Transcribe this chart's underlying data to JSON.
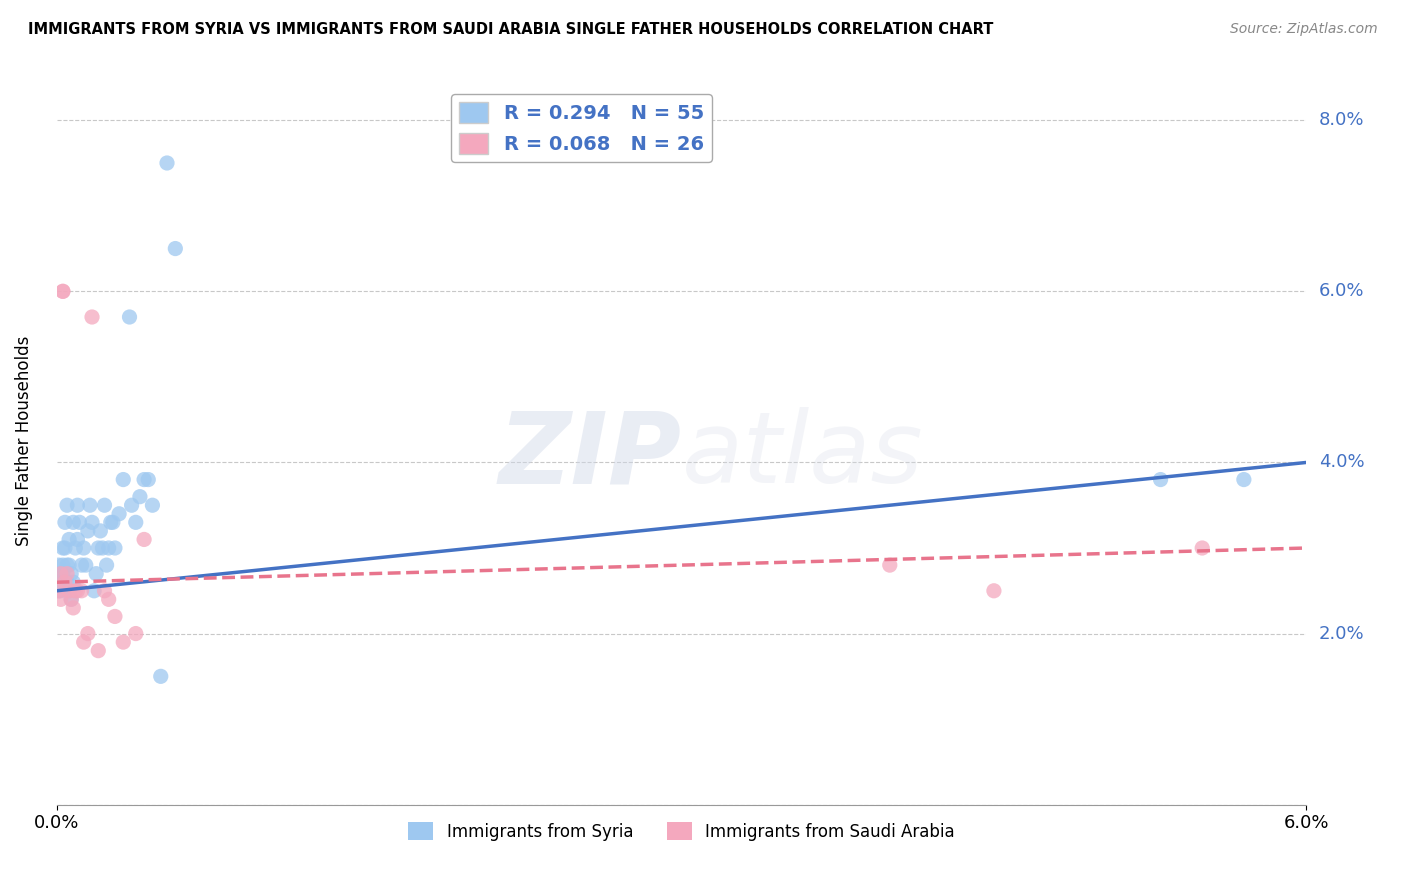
{
  "title": "IMMIGRANTS FROM SYRIA VS IMMIGRANTS FROM SAUDI ARABIA SINGLE FATHER HOUSEHOLDS CORRELATION CHART",
  "source": "Source: ZipAtlas.com",
  "ylabel": "Single Father Households",
  "series": [
    {
      "name": "Immigrants from Syria",
      "color": "#9ec8f0",
      "R": 0.294,
      "N": 55,
      "x": [
        0.0,
        0.0001,
        0.0001,
        0.0002,
        0.0002,
        0.0003,
        0.0003,
        0.0003,
        0.0004,
        0.0004,
        0.0005,
        0.0005,
        0.0005,
        0.0006,
        0.0006,
        0.0006,
        0.0007,
        0.0007,
        0.0008,
        0.0008,
        0.0009,
        0.001,
        0.001,
        0.0011,
        0.0012,
        0.0013,
        0.0014,
        0.0015,
        0.0016,
        0.0017,
        0.0018,
        0.0019,
        0.002,
        0.0021,
        0.0022,
        0.0023,
        0.0024,
        0.0025,
        0.0026,
        0.0027,
        0.0028,
        0.003,
        0.0032,
        0.0035,
        0.0036,
        0.0038,
        0.004,
        0.0042,
        0.0044,
        0.0046,
        0.005,
        0.0053,
        0.0057,
        0.053,
        0.057
      ],
      "y": [
        0.026,
        0.025,
        0.028,
        0.027,
        0.025,
        0.027,
        0.03,
        0.028,
        0.03,
        0.033,
        0.026,
        0.028,
        0.035,
        0.025,
        0.028,
        0.031,
        0.024,
        0.027,
        0.033,
        0.026,
        0.03,
        0.031,
        0.035,
        0.033,
        0.028,
        0.03,
        0.028,
        0.032,
        0.035,
        0.033,
        0.025,
        0.027,
        0.03,
        0.032,
        0.03,
        0.035,
        0.028,
        0.03,
        0.033,
        0.033,
        0.03,
        0.034,
        0.038,
        0.057,
        0.035,
        0.033,
        0.036,
        0.038,
        0.038,
        0.035,
        0.015,
        0.075,
        0.065,
        0.038,
        0.038
      ],
      "trend_x0": 0.0,
      "trend_x1": 0.06,
      "trend_y0": 0.025,
      "trend_y1": 0.04,
      "line_color": "#4472c4",
      "line_style": "solid"
    },
    {
      "name": "Immigrants from Saudi Arabia",
      "color": "#f4a8be",
      "R": 0.068,
      "N": 26,
      "x": [
        0.0001,
        0.0002,
        0.0002,
        0.0003,
        0.0003,
        0.0004,
        0.0005,
        0.0006,
        0.0007,
        0.0008,
        0.0009,
        0.001,
        0.0012,
        0.0013,
        0.0015,
        0.0017,
        0.002,
        0.0023,
        0.0025,
        0.0028,
        0.0032,
        0.0038,
        0.0042,
        0.04,
        0.045,
        0.055
      ],
      "y": [
        0.025,
        0.027,
        0.024,
        0.06,
        0.06,
        0.026,
        0.027,
        0.025,
        0.024,
        0.023,
        0.025,
        0.025,
        0.025,
        0.019,
        0.02,
        0.057,
        0.018,
        0.025,
        0.024,
        0.022,
        0.019,
        0.02,
        0.031,
        0.028,
        0.025,
        0.03
      ],
      "trend_x0": 0.0,
      "trend_x1": 0.06,
      "trend_y0": 0.026,
      "trend_y1": 0.03,
      "line_color": "#e8748c",
      "line_style": "dashed"
    }
  ],
  "legend": {
    "syria_label": "R = 0.294   N = 55",
    "saudi_label": "R = 0.068   N = 26"
  },
  "xlim": [
    0.0,
    0.06
  ],
  "ylim": [
    0.0,
    0.085
  ],
  "ytick_vals": [
    0.0,
    0.02,
    0.04,
    0.06,
    0.08
  ],
  "ytick_labels": [
    "",
    "2.0%",
    "4.0%",
    "6.0%",
    "8.0%"
  ],
  "xtick_vals": [
    0.0,
    0.06
  ],
  "xtick_labels": [
    "0.0%",
    "6.0%"
  ],
  "watermark_zip": "ZIP",
  "watermark_atlas": "atlas",
  "background_color": "#ffffff",
  "grid_color": "#c8c8c8",
  "title_fontsize": 10.5,
  "scatter_size": 120
}
